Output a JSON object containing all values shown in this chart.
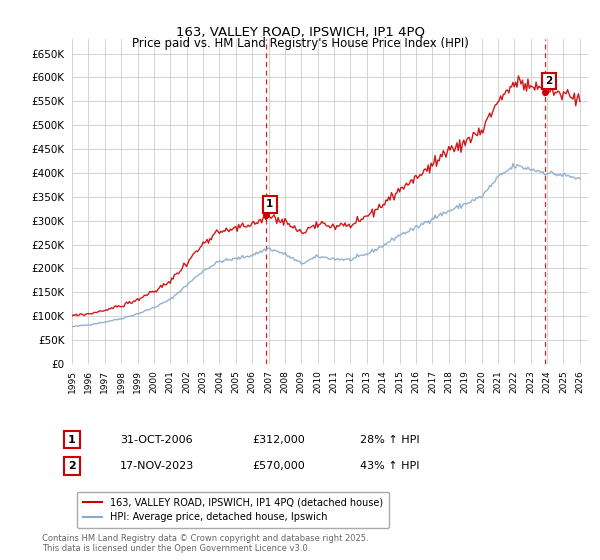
{
  "title": "163, VALLEY ROAD, IPSWICH, IP1 4PQ",
  "subtitle": "Price paid vs. HM Land Registry's House Price Index (HPI)",
  "ylim": [
    0,
    680000
  ],
  "yticks": [
    0,
    50000,
    100000,
    150000,
    200000,
    250000,
    300000,
    350000,
    400000,
    450000,
    500000,
    550000,
    600000,
    650000
  ],
  "xlim_start": 1995.0,
  "xlim_end": 2026.5,
  "legend1": "163, VALLEY ROAD, IPSWICH, IP1 4PQ (detached house)",
  "legend2": "HPI: Average price, detached house, Ipswich",
  "sale1_label": "1",
  "sale1_date": "31-OCT-2006",
  "sale1_price": "£312,000",
  "sale1_hpi": "28% ↑ HPI",
  "sale1_x": 2006.83,
  "sale1_y": 312000,
  "sale2_label": "2",
  "sale2_date": "17-NOV-2023",
  "sale2_price": "£570,000",
  "sale2_hpi": "43% ↑ HPI",
  "sale2_x": 2023.88,
  "sale2_y": 570000,
  "line_color_red": "#cc0000",
  "line_color_blue": "#88aacc",
  "vline_color": "#cc0000",
  "grid_color": "#cccccc",
  "background_color": "#ffffff",
  "footer_text": "Contains HM Land Registry data © Crown copyright and database right 2025.\nThis data is licensed under the Open Government Licence v3.0.",
  "hpi_anchors": {
    "1995": 78000,
    "1996": 82000,
    "1997": 88000,
    "1998": 95000,
    "1999": 105000,
    "2000": 118000,
    "2001": 135000,
    "2002": 165000,
    "2003": 195000,
    "2004": 215000,
    "2005": 220000,
    "2006": 228000,
    "2007": 242000,
    "2008": 230000,
    "2009": 210000,
    "2010": 225000,
    "2011": 220000,
    "2012": 218000,
    "2013": 230000,
    "2014": 248000,
    "2015": 270000,
    "2016": 285000,
    "2017": 305000,
    "2018": 320000,
    "2019": 335000,
    "2020": 350000,
    "2021": 390000,
    "2022": 415000,
    "2023": 408000,
    "2024": 400000,
    "2025": 395000,
    "2026": 388000
  }
}
